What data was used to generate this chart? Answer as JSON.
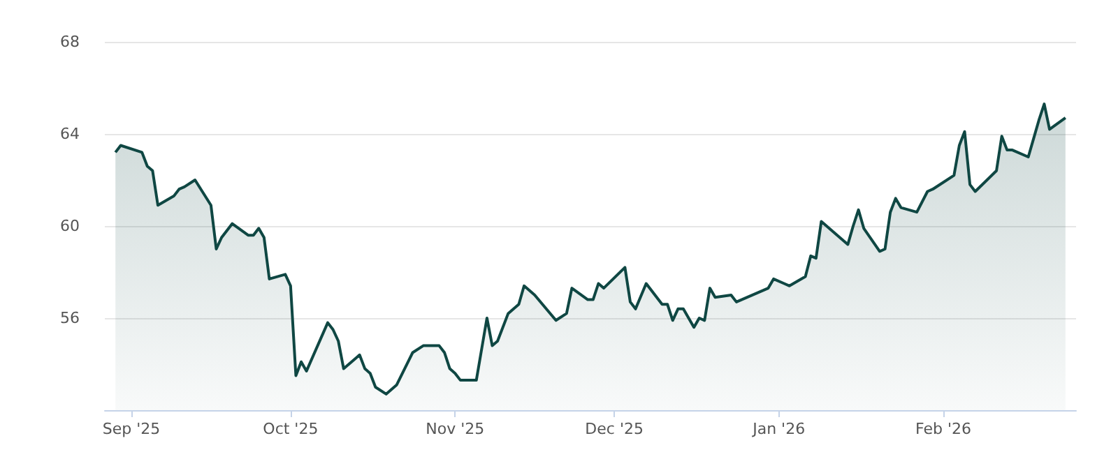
{
  "chart_data": {
    "type": "area",
    "x": [
      "2025-08-29",
      "2025-08-30",
      "2025-09-03",
      "2025-09-04",
      "2025-09-05",
      "2025-09-06",
      "2025-09-09",
      "2025-09-10",
      "2025-09-11",
      "2025-09-13",
      "2025-09-16",
      "2025-09-17",
      "2025-09-18",
      "2025-09-20",
      "2025-09-23",
      "2025-09-24",
      "2025-09-25",
      "2025-09-26",
      "2025-09-27",
      "2025-09-30",
      "2025-10-01",
      "2025-10-02",
      "2025-10-03",
      "2025-10-04",
      "2025-10-08",
      "2025-10-09",
      "2025-10-10",
      "2025-10-11",
      "2025-10-14",
      "2025-10-15",
      "2025-10-16",
      "2025-10-17",
      "2025-10-19",
      "2025-10-21",
      "2025-10-24",
      "2025-10-26",
      "2025-10-29",
      "2025-10-30",
      "2025-10-31",
      "2025-11-01",
      "2025-11-02",
      "2025-11-05",
      "2025-11-07",
      "2025-11-08",
      "2025-11-09",
      "2025-11-11",
      "2025-11-13",
      "2025-11-14",
      "2025-11-16",
      "2025-11-20",
      "2025-11-22",
      "2025-11-23",
      "2025-11-26",
      "2025-11-27",
      "2025-11-28",
      "2025-11-29",
      "2025-12-03",
      "2025-12-04",
      "2025-12-05",
      "2025-12-07",
      "2025-12-10",
      "2025-12-11",
      "2025-12-12",
      "2025-12-13",
      "2025-12-14",
      "2025-12-16",
      "2025-12-17",
      "2025-12-18",
      "2025-12-19",
      "2025-12-20",
      "2025-12-23",
      "2025-12-24",
      "2025-12-30",
      "2025-12-31",
      "2026-01-02",
      "2026-01-03",
      "2026-01-06",
      "2026-01-07",
      "2026-01-08",
      "2026-01-09",
      "2026-01-14",
      "2026-01-15",
      "2026-01-16",
      "2026-01-17",
      "2026-01-20",
      "2026-01-21",
      "2026-01-22",
      "2026-01-23",
      "2026-01-24",
      "2026-01-27",
      "2026-01-29",
      "2026-01-30",
      "2026-02-03",
      "2026-02-04",
      "2026-02-05",
      "2026-02-06",
      "2026-02-07",
      "2026-02-11",
      "2026-02-12",
      "2026-02-13",
      "2026-02-14",
      "2026-02-17",
      "2026-02-18",
      "2026-02-19",
      "2026-02-20",
      "2026-02-21",
      "2026-02-24"
    ],
    "series": [
      {
        "color": "#0f4743",
        "values": [
          63.2,
          63.5,
          63.2,
          62.6,
          62.4,
          60.9,
          61.3,
          61.6,
          61.7,
          62.0,
          60.9,
          59.0,
          59.5,
          60.1,
          59.6,
          59.6,
          59.9,
          59.5,
          57.7,
          57.9,
          57.4,
          53.5,
          54.1,
          53.7,
          55.8,
          55.5,
          55.0,
          53.8,
          54.4,
          53.8,
          53.6,
          53.0,
          52.7,
          53.1,
          54.5,
          54.8,
          54.8,
          54.5,
          53.8,
          53.6,
          53.3,
          53.3,
          56.0,
          54.8,
          55.0,
          56.2,
          56.6,
          57.4,
          57.0,
          55.9,
          56.2,
          57.3,
          56.8,
          56.8,
          57.5,
          57.3,
          58.2,
          56.7,
          56.4,
          57.5,
          56.6,
          56.6,
          55.9,
          56.4,
          56.4,
          55.6,
          56.0,
          55.9,
          57.3,
          56.9,
          57.0,
          56.7,
          57.3,
          57.7,
          57.5,
          57.4,
          57.8,
          58.7,
          58.6,
          60.2,
          59.2,
          60.0,
          60.7,
          59.9,
          58.9,
          59.0,
          60.6,
          61.2,
          60.8,
          60.6,
          61.5,
          61.6,
          62.2,
          63.5,
          64.1,
          61.8,
          61.5,
          62.4,
          63.9,
          63.3,
          63.3,
          63.0,
          63.8,
          64.6,
          65.3,
          64.2,
          64.7
        ]
      }
    ],
    "xlim": [
      "2025-08-27",
      "2026-02-26"
    ],
    "xticks": [
      {
        "value": "2025-09-01",
        "label": "Sep '25"
      },
      {
        "value": "2025-10-01",
        "label": "Oct '25"
      },
      {
        "value": "2025-11-01",
        "label": "Nov '25"
      },
      {
        "value": "2025-12-01",
        "label": "Dec '25"
      },
      {
        "value": "2026-01-01",
        "label": "Jan '26"
      },
      {
        "value": "2026-02-01",
        "label": "Feb '26"
      }
    ],
    "ylim": [
      52,
      68
    ],
    "yticks": [
      56,
      60,
      64,
      68
    ],
    "grid": "y"
  }
}
